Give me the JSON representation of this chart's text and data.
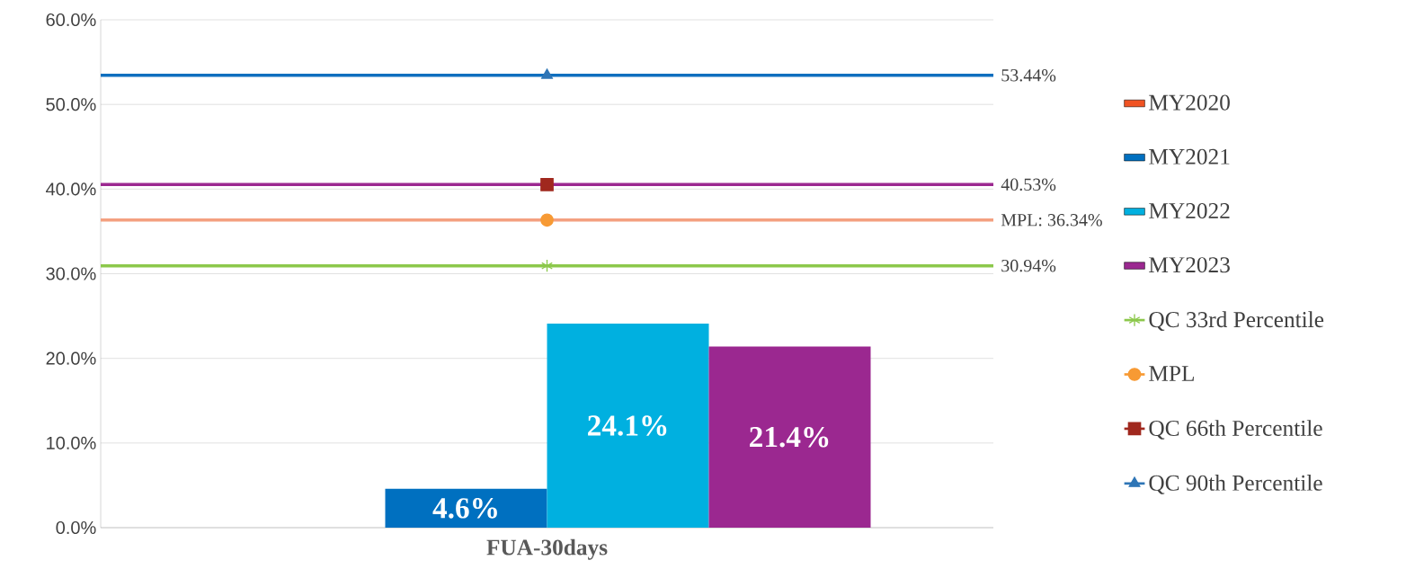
{
  "chart_data": {
    "type": "bar",
    "categories": [
      "FUA-30days"
    ],
    "series": [
      {
        "name": "MY2020",
        "color": "#f05323",
        "values": [
          null
        ],
        "value_labels": [
          null
        ]
      },
      {
        "name": "MY2021",
        "color": "#0070c0",
        "values": [
          4.6
        ],
        "value_labels": [
          "4.6%"
        ]
      },
      {
        "name": "MY2022",
        "color": "#00b0e0",
        "values": [
          24.1
        ],
        "value_labels": [
          "24.1%"
        ]
      },
      {
        "name": "MY2023",
        "color": "#9b2890",
        "values": [
          21.4
        ],
        "value_labels": [
          "21.4%"
        ]
      },
      {
        "name": "QC 33rd Percentile",
        "type": "line",
        "marker": "cross",
        "color": "#8cc84b",
        "values": [
          30.94
        ]
      },
      {
        "name": "MPL",
        "type": "line",
        "marker": "circle",
        "color": "#f79a34",
        "values": [
          36.34
        ]
      },
      {
        "name": "QC 66th Percentile",
        "type": "line",
        "marker": "square",
        "color": "#a0281e",
        "values": [
          40.53
        ]
      },
      {
        "name": "QC 90th Percentile",
        "type": "line",
        "marker": "triangle",
        "color": "#2e75b6",
        "values": [
          53.44
        ]
      }
    ],
    "ref_lines": [
      {
        "axis": "y",
        "value": 53.44,
        "label": "53.44%",
        "color": "#0f6fbf"
      },
      {
        "axis": "y",
        "value": 40.53,
        "label": "40.53%",
        "color": "#9b2890"
      },
      {
        "axis": "y",
        "value": 36.34,
        "label": "MPL: 36.34%",
        "color": "#f4a080"
      },
      {
        "axis": "y",
        "value": 30.94,
        "label": "30.94%",
        "color": "#8cc84b"
      }
    ],
    "ylim": [
      0,
      60
    ],
    "yticks": [
      {
        "value": 0,
        "label": "0.0%"
      },
      {
        "value": 10,
        "label": "10.0%"
      },
      {
        "value": 20,
        "label": "20.0%"
      },
      {
        "value": 30,
        "label": "30.0%"
      },
      {
        "value": 40,
        "label": "40.0%"
      },
      {
        "value": 50,
        "label": "50.0%"
      },
      {
        "value": 60,
        "label": "60.0%"
      }
    ],
    "grid": "y",
    "legend": "right"
  }
}
